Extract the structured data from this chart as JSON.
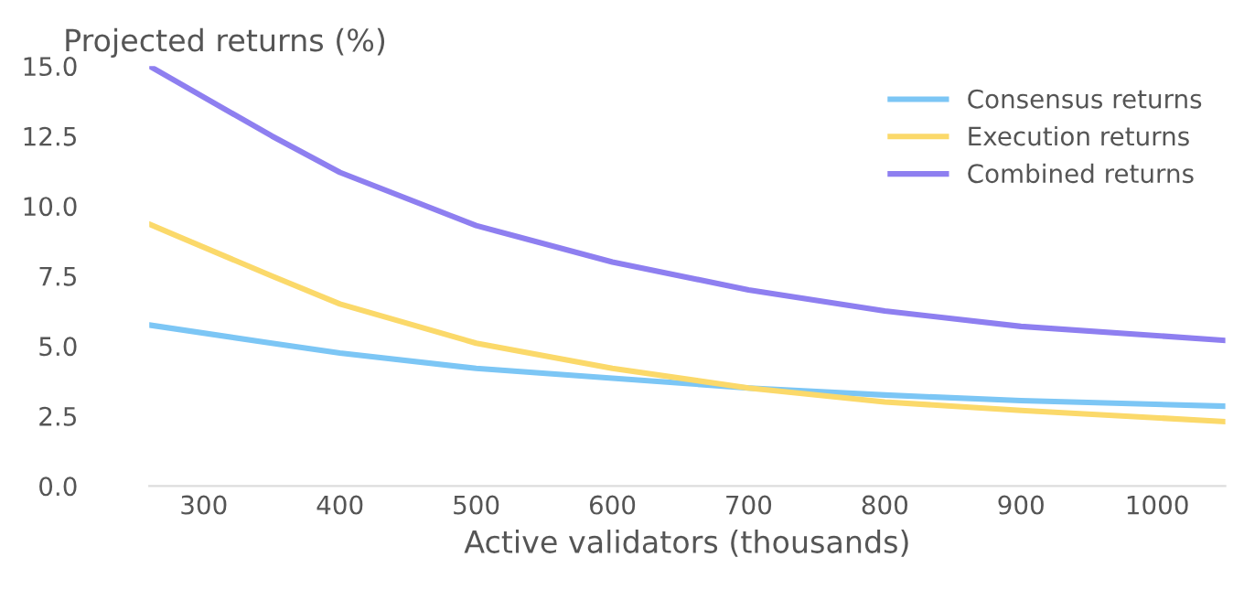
{
  "chart_data": {
    "type": "line",
    "ylabel": "Projected returns (%)",
    "xlabel": "Active validators (thousands)",
    "xlim": [
      260,
      1050
    ],
    "xticks": [
      300,
      400,
      500,
      600,
      700,
      800,
      900,
      1000
    ],
    "ylim": [
      0,
      15
    ],
    "yticks": [
      {
        "value": 0,
        "label": "0.0"
      },
      {
        "value": 2.5,
        "label": "2.5"
      },
      {
        "value": 5,
        "label": "5.0"
      },
      {
        "value": 7.5,
        "label": "7.5"
      },
      {
        "value": 10,
        "label": "10.0"
      },
      {
        "value": 12.5,
        "label": "12.5"
      },
      {
        "value": 15,
        "label": "15.0"
      }
    ],
    "grid": false,
    "legend": "top right",
    "marker": "none",
    "line_style": "solid",
    "series": [
      {
        "name": "Consensus returns",
        "color": "#7cc6f5",
        "x": [
          260,
          350,
          400,
          500,
          600,
          700,
          800,
          900,
          1050
        ],
        "values": [
          5.75,
          5.1,
          4.75,
          4.2,
          3.85,
          3.5,
          3.25,
          3.05,
          2.85
        ]
      },
      {
        "name": "Execution returns",
        "color": "#fbd96a",
        "x": [
          260,
          350,
          400,
          500,
          600,
          700,
          800,
          900,
          1050
        ],
        "values": [
          9.35,
          7.5,
          6.5,
          5.1,
          4.2,
          3.5,
          3.0,
          2.7,
          2.3
        ]
      },
      {
        "name": "Combined returns",
        "color": "#8e7ff0",
        "x": [
          260,
          350,
          400,
          500,
          600,
          700,
          800,
          900,
          1050
        ],
        "values": [
          15.0,
          12.5,
          11.2,
          9.3,
          8.0,
          7.0,
          6.25,
          5.7,
          5.2
        ]
      }
    ]
  }
}
